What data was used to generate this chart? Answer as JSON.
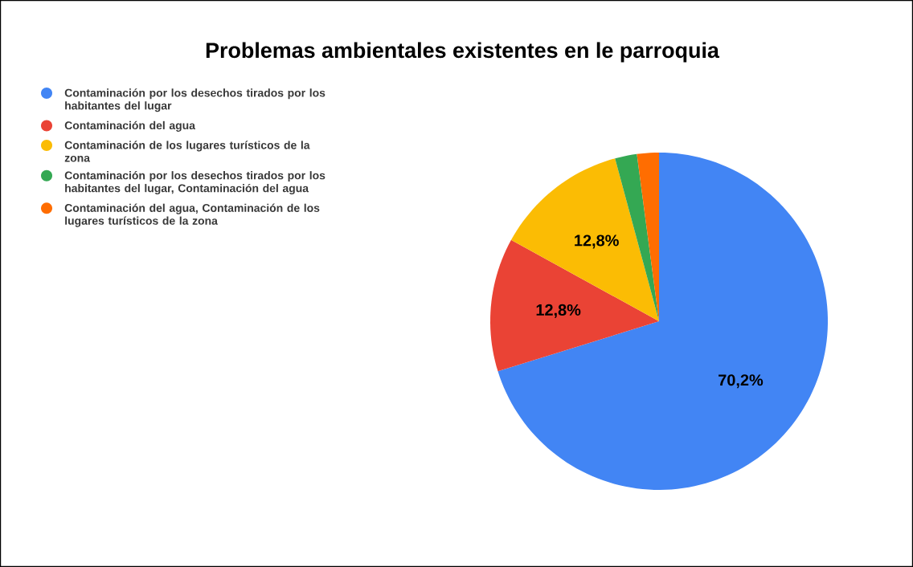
{
  "chart_data": {
    "type": "pie",
    "title": "Problemas ambientales existentes en le parroquia",
    "categories": [
      "Contaminación por los desechos tirados por los habitantes del lugar",
      "Contaminación del agua",
      "Contaminación de los lugares turísticos de la zona",
      "Contaminación por los desechos tirados por los habitantes del lugar, Contaminación del agua",
      "Contaminación del agua, Contaminación de los lugares turísticos de la zona"
    ],
    "values": [
      70.2,
      12.8,
      12.8,
      2.1,
      2.1
    ],
    "colors": [
      "#4285f4",
      "#ea4335",
      "#fbbc04",
      "#34a853",
      "#ff6d01"
    ],
    "value_labels": [
      "70,2%",
      "12,8%",
      "12,8%",
      null,
      null
    ],
    "legend": "left"
  }
}
